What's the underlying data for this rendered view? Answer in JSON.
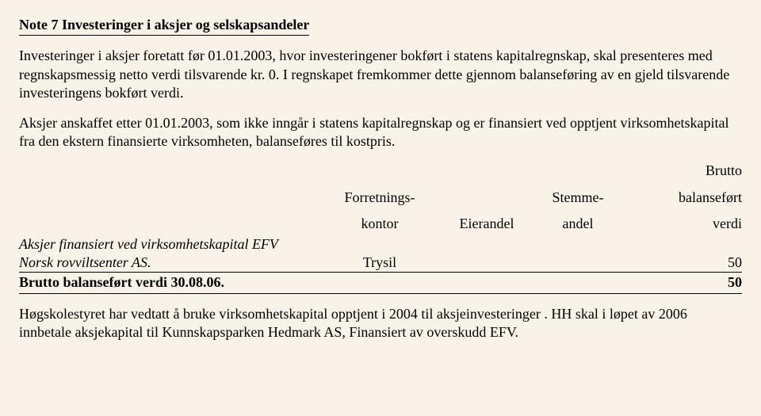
{
  "title": "Note 7 Investeringer i aksjer og selskapsandeler",
  "para1": "Investeringer i aksjer foretatt før 01.01.2003, hvor investeringener bokført i statens kapitalregnskap, skal presenteres med regnskapsmessig netto verdi tilsvarende kr. 0. I regnskapet fremkommer dette gjennom balanseføring av en gjeld tilsvarende investeringens bokført verdi.",
  "para2": "Aksjer anskaffet etter 01.01.2003, som ikke inngår i statens kapitalregnskap og er finansiert ved opptjent virksomhetskapital fra den ekstern finansierte virksomheten, balanseføres til kostpris.",
  "headers": {
    "col2a": "Forretnings-",
    "col2b": "kontor",
    "col3": "Eierandel",
    "col4a": "Stemme-",
    "col4b": "andel",
    "col5a": "Brutto",
    "col5b": "balanseført",
    "col5c": "verdi"
  },
  "section_italic": "Aksjer finansiert ved virksomhetskapital EFV",
  "row": {
    "name": "Norsk rovviltsenter AS.",
    "kontor": "Trysil",
    "value": "50"
  },
  "total": {
    "label": "Brutto balanseført verdi 30.08.06.",
    "value": "50"
  },
  "para3": "Høgskolestyret har vedtatt å bruke virksomhetskapital opptjent i 2004 til aksjeinvesteringer . HH skal i løpet av 2006 innbetale aksjekapital til Kunnskapsparken Hedmark AS, Finansiert av overskudd EFV."
}
